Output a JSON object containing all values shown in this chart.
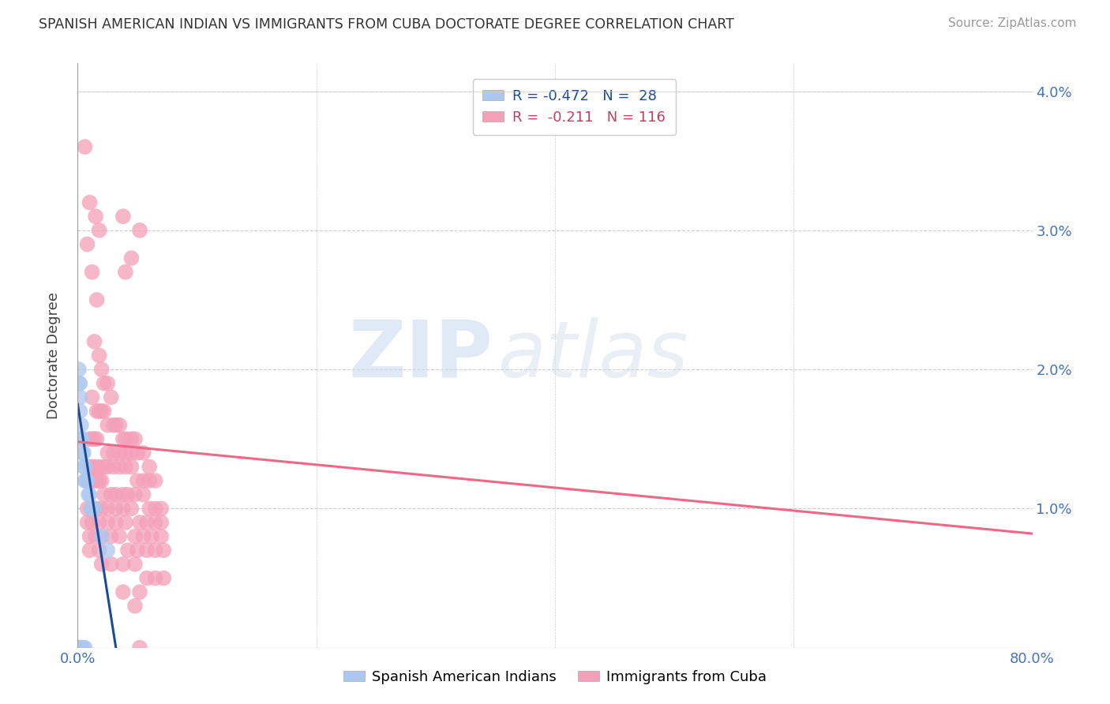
{
  "title": "SPANISH AMERICAN INDIAN VS IMMIGRANTS FROM CUBA DOCTORATE DEGREE CORRELATION CHART",
  "source": "Source: ZipAtlas.com",
  "ylabel": "Doctorate Degree",
  "blue_color": "#adc8f0",
  "pink_color": "#f4a0b8",
  "blue_line_color": "#1a4a9a",
  "pink_line_color": "#f06888",
  "background_color": "#ffffff",
  "watermark_zip": "ZIP",
  "watermark_atlas": "atlas",
  "legend1_r": "R = -0.472",
  "legend1_n": "N =  28",
  "legend2_r": "R =  -0.211",
  "legend2_n": "N = 116",
  "blue_color_legend": "#adc8f0",
  "pink_color_legend": "#f4a0b8",
  "xlim": [
    0.0,
    0.8
  ],
  "ylim": [
    0.0,
    0.042
  ],
  "blue_trendline_x": [
    0.0,
    0.032
  ],
  "blue_trendline_y": [
    0.0175,
    0.0
  ],
  "pink_trendline_x": [
    0.0,
    0.8
  ],
  "pink_trendline_y": [
    0.0148,
    0.0082
  ],
  "blue_dots": [
    [
      0.001,
      0.019
    ],
    [
      0.002,
      0.018
    ],
    [
      0.002,
      0.017
    ],
    [
      0.003,
      0.016
    ],
    [
      0.003,
      0.015
    ],
    [
      0.004,
      0.015
    ],
    [
      0.004,
      0.014
    ],
    [
      0.005,
      0.014
    ],
    [
      0.005,
      0.013
    ],
    [
      0.006,
      0.013
    ],
    [
      0.006,
      0.012
    ],
    [
      0.007,
      0.012
    ],
    [
      0.008,
      0.012
    ],
    [
      0.009,
      0.011
    ],
    [
      0.01,
      0.011
    ],
    [
      0.011,
      0.01
    ],
    [
      0.012,
      0.01
    ],
    [
      0.014,
      0.01
    ],
    [
      0.001,
      0.02
    ],
    [
      0.002,
      0.019
    ],
    [
      0.001,
      0.0
    ],
    [
      0.002,
      0.0
    ],
    [
      0.003,
      0.0
    ],
    [
      0.004,
      0.0
    ],
    [
      0.005,
      0.0
    ],
    [
      0.006,
      0.0
    ],
    [
      0.02,
      0.008
    ],
    [
      0.025,
      0.007
    ]
  ],
  "pink_dots": [
    [
      0.006,
      0.036
    ],
    [
      0.01,
      0.032
    ],
    [
      0.015,
      0.031
    ],
    [
      0.018,
      0.03
    ],
    [
      0.008,
      0.029
    ],
    [
      0.038,
      0.031
    ],
    [
      0.052,
      0.03
    ],
    [
      0.012,
      0.027
    ],
    [
      0.016,
      0.025
    ],
    [
      0.045,
      0.028
    ],
    [
      0.04,
      0.027
    ],
    [
      0.014,
      0.022
    ],
    [
      0.018,
      0.021
    ],
    [
      0.02,
      0.02
    ],
    [
      0.022,
      0.019
    ],
    [
      0.025,
      0.019
    ],
    [
      0.028,
      0.018
    ],
    [
      0.012,
      0.018
    ],
    [
      0.016,
      0.017
    ],
    [
      0.018,
      0.017
    ],
    [
      0.02,
      0.017
    ],
    [
      0.022,
      0.017
    ],
    [
      0.025,
      0.016
    ],
    [
      0.03,
      0.016
    ],
    [
      0.032,
      0.016
    ],
    [
      0.035,
      0.016
    ],
    [
      0.038,
      0.015
    ],
    [
      0.04,
      0.015
    ],
    [
      0.045,
      0.015
    ],
    [
      0.048,
      0.015
    ],
    [
      0.01,
      0.015
    ],
    [
      0.012,
      0.015
    ],
    [
      0.014,
      0.015
    ],
    [
      0.016,
      0.015
    ],
    [
      0.025,
      0.014
    ],
    [
      0.03,
      0.014
    ],
    [
      0.035,
      0.014
    ],
    [
      0.04,
      0.014
    ],
    [
      0.045,
      0.014
    ],
    [
      0.05,
      0.014
    ],
    [
      0.055,
      0.014
    ],
    [
      0.06,
      0.013
    ],
    [
      0.01,
      0.013
    ],
    [
      0.012,
      0.013
    ],
    [
      0.015,
      0.013
    ],
    [
      0.018,
      0.013
    ],
    [
      0.022,
      0.013
    ],
    [
      0.025,
      0.013
    ],
    [
      0.03,
      0.013
    ],
    [
      0.035,
      0.013
    ],
    [
      0.04,
      0.013
    ],
    [
      0.045,
      0.013
    ],
    [
      0.05,
      0.012
    ],
    [
      0.055,
      0.012
    ],
    [
      0.06,
      0.012
    ],
    [
      0.065,
      0.012
    ],
    [
      0.008,
      0.012
    ],
    [
      0.01,
      0.012
    ],
    [
      0.012,
      0.012
    ],
    [
      0.015,
      0.012
    ],
    [
      0.018,
      0.012
    ],
    [
      0.02,
      0.012
    ],
    [
      0.022,
      0.011
    ],
    [
      0.028,
      0.011
    ],
    [
      0.032,
      0.011
    ],
    [
      0.038,
      0.011
    ],
    [
      0.042,
      0.011
    ],
    [
      0.048,
      0.011
    ],
    [
      0.055,
      0.011
    ],
    [
      0.06,
      0.01
    ],
    [
      0.065,
      0.01
    ],
    [
      0.07,
      0.01
    ],
    [
      0.008,
      0.01
    ],
    [
      0.012,
      0.01
    ],
    [
      0.015,
      0.01
    ],
    [
      0.02,
      0.01
    ],
    [
      0.025,
      0.01
    ],
    [
      0.032,
      0.01
    ],
    [
      0.038,
      0.01
    ],
    [
      0.045,
      0.01
    ],
    [
      0.052,
      0.009
    ],
    [
      0.058,
      0.009
    ],
    [
      0.065,
      0.009
    ],
    [
      0.07,
      0.009
    ],
    [
      0.008,
      0.009
    ],
    [
      0.012,
      0.009
    ],
    [
      0.018,
      0.009
    ],
    [
      0.025,
      0.009
    ],
    [
      0.032,
      0.009
    ],
    [
      0.04,
      0.009
    ],
    [
      0.048,
      0.008
    ],
    [
      0.055,
      0.008
    ],
    [
      0.062,
      0.008
    ],
    [
      0.07,
      0.008
    ],
    [
      0.01,
      0.008
    ],
    [
      0.015,
      0.008
    ],
    [
      0.02,
      0.008
    ],
    [
      0.028,
      0.008
    ],
    [
      0.035,
      0.008
    ],
    [
      0.042,
      0.007
    ],
    [
      0.05,
      0.007
    ],
    [
      0.058,
      0.007
    ],
    [
      0.065,
      0.007
    ],
    [
      0.072,
      0.007
    ],
    [
      0.01,
      0.007
    ],
    [
      0.018,
      0.007
    ],
    [
      0.028,
      0.006
    ],
    [
      0.038,
      0.006
    ],
    [
      0.048,
      0.006
    ],
    [
      0.058,
      0.005
    ],
    [
      0.065,
      0.005
    ],
    [
      0.072,
      0.005
    ],
    [
      0.02,
      0.006
    ],
    [
      0.038,
      0.004
    ],
    [
      0.052,
      0.004
    ],
    [
      0.052,
      0.0
    ],
    [
      0.048,
      0.003
    ]
  ]
}
